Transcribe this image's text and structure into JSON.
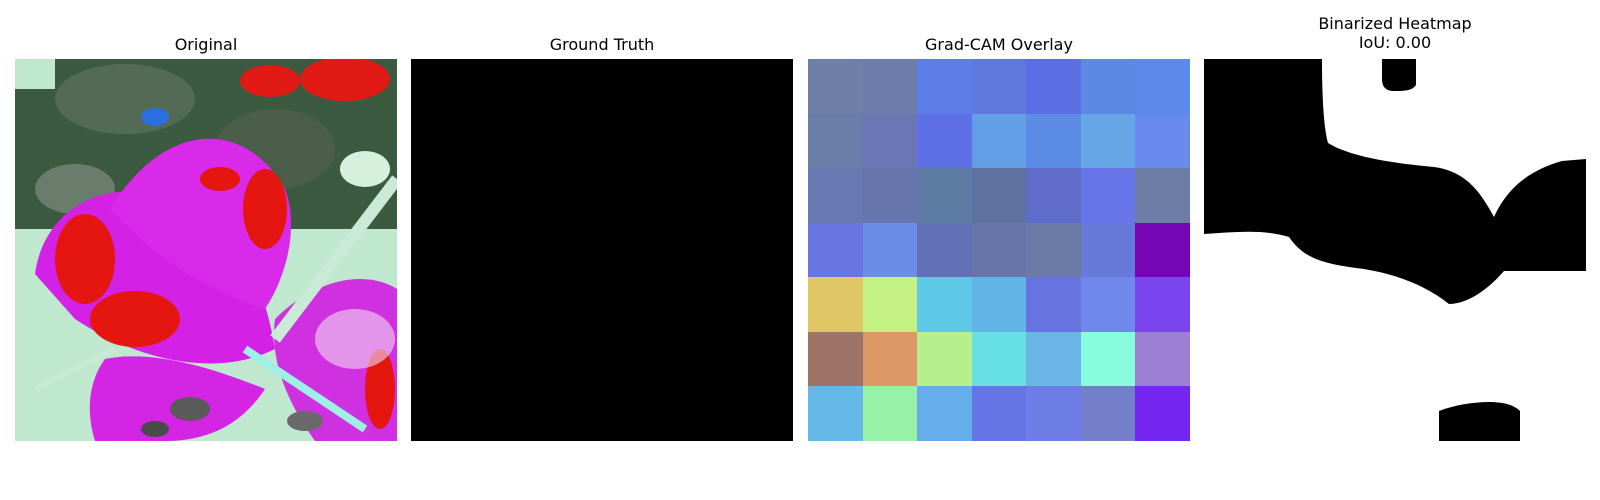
{
  "panels": {
    "original": {
      "title": "Original"
    },
    "ground_truth": {
      "title": "Ground Truth"
    },
    "gradcam": {
      "title": "Grad-CAM Overlay",
      "cells": [
        [
          "#6e7fa8",
          "#6d7dab",
          "#5c7ee6",
          "#5f78dc",
          "#5c6ee3",
          "#5c8ae3",
          "#5e89ec"
        ],
        [
          "#6a7eaa",
          "#6b76b5",
          "#5f70e6",
          "#629fe6",
          "#5c8be3",
          "#66a5e6",
          "#6989ef"
        ],
        [
          "#6779b0",
          "#6676ac",
          "#5f7ca5",
          "#5f73a3",
          "#5f6cc9",
          "#6775e8",
          "#6c7da6"
        ],
        [
          "#6a77e3",
          "#6a8de6",
          "#6270b6",
          "#6676a8",
          "#6b7aa6",
          "#6779d9",
          "#7605b6"
        ],
        [
          "#e0c765",
          "#c3f183",
          "#5ec9e6",
          "#62b3e6",
          "#6773e0",
          "#7088ec",
          "#7a45ee"
        ],
        [
          "#9e7468",
          "#db9866",
          "#b6f08d",
          "#66e0e3",
          "#68b5e6",
          "#87fddd",
          "#9a7fd2"
        ],
        [
          "#66b8e6",
          "#97f2a8",
          "#65adeb",
          "#6575e6",
          "#6d7de5",
          "#7380c9",
          "#7526f1"
        ]
      ]
    },
    "binarized": {
      "title": "Binarized Heatmap\nIoU: 0.00"
    }
  },
  "colors": {
    "background": "#ffffff",
    "mask_fg": "#000000",
    "mask_bg": "#ffffff"
  }
}
